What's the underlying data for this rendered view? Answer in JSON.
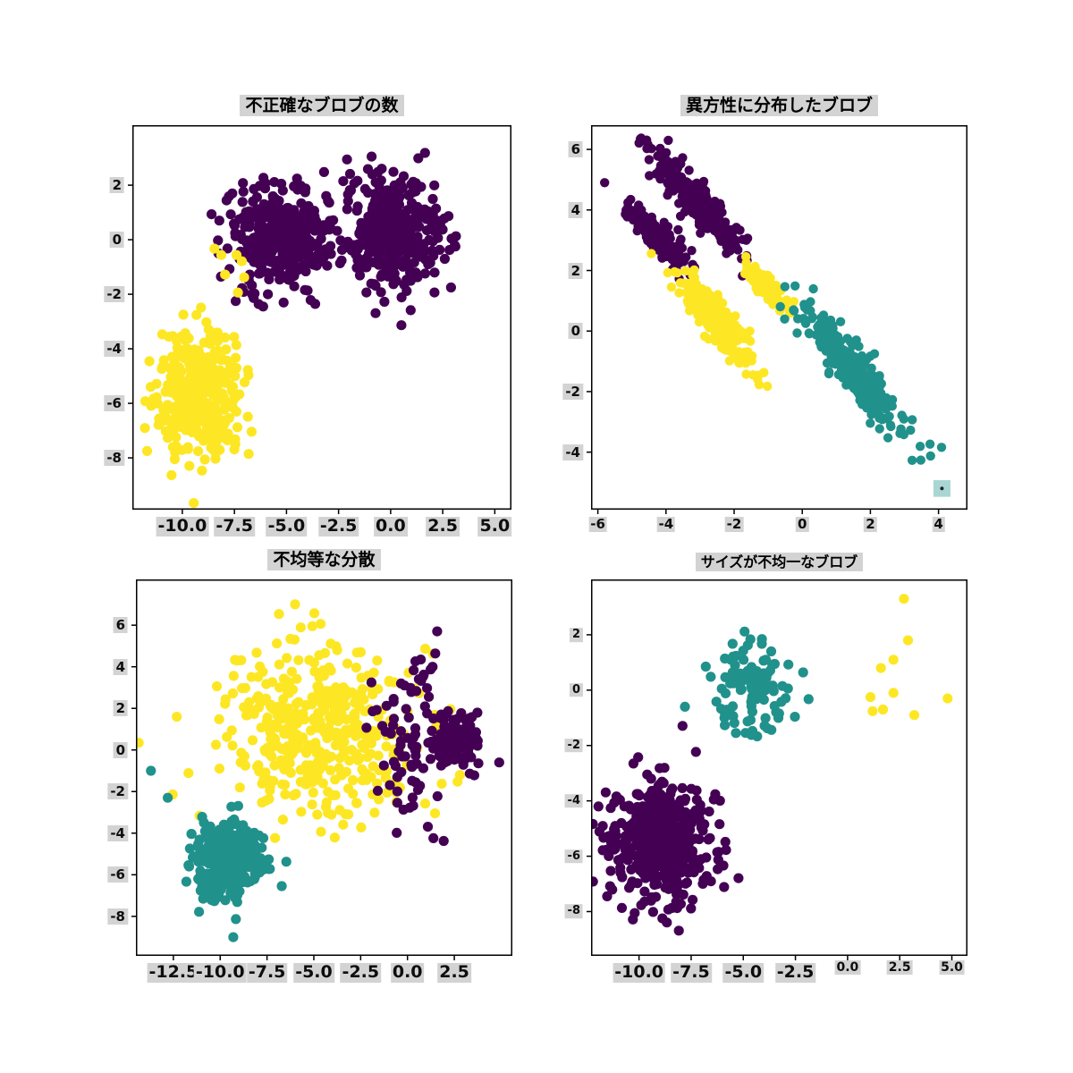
{
  "figure": {
    "background": "#ffffff"
  },
  "colors": {
    "purple": "#440154",
    "yellow": "#fde725",
    "teal": "#21918c",
    "tick_label_bg": "#d3d3d3",
    "spine": "#000000",
    "text": "#0d0d0d",
    "artifact_fill": "#a9d6d3",
    "artifact_dot": "#222222"
  },
  "chart_data": [
    {
      "id": "incorrect-number-of-blobs",
      "type": "scatter",
      "title": "不正確なブロブの数",
      "legend": "none",
      "grid": false,
      "xlim": [
        -12.4,
        5.8
      ],
      "ylim": [
        -9.9,
        4.2
      ],
      "xticks": [
        {
          "v": -10,
          "label": "-10.0"
        },
        {
          "v": -7.5,
          "label": "-7.5"
        },
        {
          "v": -5,
          "label": "-5.0"
        },
        {
          "v": -2.5,
          "label": "-2.5"
        },
        {
          "v": 0,
          "label": "0.0"
        },
        {
          "v": 2.5,
          "label": "2.5"
        },
        {
          "v": 5,
          "label": "5.0"
        }
      ],
      "yticks": [
        {
          "v": 2,
          "label": "2"
        },
        {
          "v": 0,
          "label": "0"
        },
        {
          "v": -2,
          "label": "-2"
        },
        {
          "v": -4,
          "label": "-4"
        },
        {
          "v": -6,
          "label": "-6"
        },
        {
          "v": -8,
          "label": "-8"
        }
      ],
      "marker_radius": 5.6,
      "clusters": [
        {
          "color": "purple",
          "n": 380,
          "center": [
            -5.4,
            0.1
          ],
          "std": [
            1.15,
            1.0
          ],
          "seed": 11
        },
        {
          "color": "purple",
          "n": 380,
          "center": [
            0.05,
            0.2
          ],
          "std": [
            1.15,
            1.05
          ],
          "seed": 12
        },
        {
          "color": "yellow",
          "n": 380,
          "center": [
            -9.2,
            -5.6
          ],
          "std": [
            1.0,
            1.05
          ],
          "seed": 13
        },
        {
          "color": "yellow",
          "points": [
            [
              -8.46,
              -0.33
            ],
            [
              -8.13,
              -0.56
            ],
            [
              -7.4,
              -0.56
            ],
            [
              -7.14,
              -0.79
            ],
            [
              -7.95,
              -1.28
            ],
            [
              -7.03,
              -1.38
            ],
            [
              -7.33,
              -1.94
            ]
          ]
        },
        {
          "color": "purple",
          "points": [
            [
              2.9,
              -1.75
            ]
          ]
        }
      ]
    },
    {
      "id": "anisotropically-distributed-blobs",
      "type": "scatter",
      "title": "異方性に分布したブロブ",
      "legend": "none",
      "grid": false,
      "xlim": [
        -6.2,
        4.85
      ],
      "ylim": [
        -5.9,
        6.8
      ],
      "xticks": [
        {
          "v": -6,
          "label": "-6"
        },
        {
          "v": -4,
          "label": "-4"
        },
        {
          "v": -2,
          "label": "-2"
        },
        {
          "v": 0,
          "label": "0"
        },
        {
          "v": 2,
          "label": "2"
        },
        {
          "v": 4,
          "label": "4"
        }
      ],
      "yticks": [
        {
          "v": 6,
          "label": "6"
        },
        {
          "v": 4,
          "label": "4"
        },
        {
          "v": 2,
          "label": "2"
        },
        {
          "v": 0,
          "label": "0"
        },
        {
          "v": -2,
          "label": "-2"
        },
        {
          "v": -4,
          "label": "-4"
        }
      ],
      "marker_radius": 5.2,
      "clusters": [
        {
          "color": "purple",
          "n": 240,
          "center": [
            -3.15,
            4.35
          ],
          "dir": [
            0.595,
            -0.804
          ],
          "std": [
            1.05,
            0.22
          ],
          "seed": 21
        },
        {
          "color": "purple",
          "n": 160,
          "center": [
            -4.15,
            3.05
          ],
          "dir": [
            0.63,
            -0.78
          ],
          "std": [
            0.62,
            0.2
          ],
          "seed": 22
        },
        {
          "color": "yellow",
          "n": 260,
          "center": [
            -2.5,
            0.35
          ],
          "dir": [
            0.56,
            -0.83
          ],
          "std": [
            1.0,
            0.22
          ],
          "seed": 23
        },
        {
          "color": "yellow",
          "n": 90,
          "center": [
            -1.05,
            1.45
          ],
          "dir": [
            0.595,
            -0.804
          ],
          "std": [
            0.42,
            0.16
          ],
          "seed": 24
        },
        {
          "color": "teal",
          "n": 320,
          "center": [
            1.45,
            -1.25
          ],
          "dir": [
            0.565,
            -0.825
          ],
          "std": [
            1.25,
            0.24
          ],
          "seed": 25
        },
        {
          "color": "purple",
          "points": [
            [
              -5.8,
              4.9
            ]
          ]
        }
      ],
      "artifact": {
        "x": 4.1,
        "y": -5.2,
        "w": 0.5,
        "h": 0.55
      }
    },
    {
      "id": "unequal-variance",
      "type": "scatter",
      "title": "不均等な分散",
      "legend": "none",
      "grid": false,
      "xlim": [
        -14.5,
        5.6
      ],
      "ylim": [
        -9.9,
        8.2
      ],
      "xticks": [
        {
          "v": -12.5,
          "label": "-12.5"
        },
        {
          "v": -10,
          "label": "-10.0"
        },
        {
          "v": -7.5,
          "label": "-7.5"
        },
        {
          "v": -5,
          "label": "-5.0"
        },
        {
          "v": -2.5,
          "label": "-2.5"
        },
        {
          "v": 0,
          "label": "0.0"
        },
        {
          "v": 2.5,
          "label": "2.5"
        }
      ],
      "yticks": [
        {
          "v": 6,
          "label": "6"
        },
        {
          "v": 4,
          "label": "4"
        },
        {
          "v": 2,
          "label": "2"
        },
        {
          "v": 0,
          "label": "0"
        },
        {
          "v": -2,
          "label": "-2"
        },
        {
          "v": -4,
          "label": "-4"
        },
        {
          "v": -6,
          "label": "-6"
        },
        {
          "v": -8,
          "label": "-8"
        }
      ],
      "marker_radius": 5.6,
      "clusters": [
        {
          "color": "yellow",
          "n": 430,
          "center": [
            -4.8,
            0.9
          ],
          "std": [
            2.5,
            2.1
          ],
          "seed": 31
        },
        {
          "color": "purple",
          "n": 130,
          "center": [
            2.6,
            0.45
          ],
          "std": [
            0.6,
            0.68
          ],
          "seed": 32
        },
        {
          "color": "purple",
          "n": 80,
          "center": [
            0.3,
            1.0
          ],
          "std": [
            1.0,
            2.3
          ],
          "seed": 33
        },
        {
          "color": "teal",
          "n": 280,
          "center": [
            -9.6,
            -5.4
          ],
          "std": [
            0.95,
            0.95
          ],
          "seed": 34
        },
        {
          "color": "teal",
          "points": [
            [
              -13.7,
              -1.0
            ],
            [
              -12.8,
              -2.3
            ],
            [
              -9.3,
              -9.0
            ]
          ]
        },
        {
          "color": "purple",
          "points": [
            [
              4.9,
              -0.6
            ]
          ]
        }
      ]
    },
    {
      "id": "unevenly-sized-blobs",
      "type": "scatter",
      "title": "サイズが不均一なブロブ",
      "legend": "none",
      "grid": false,
      "xlim": [
        -12.3,
        5.75
      ],
      "ylim": [
        -9.6,
        4.0
      ],
      "xticks": [
        {
          "v": -10,
          "label": "-10.0"
        },
        {
          "v": -7.5,
          "label": "-7.5"
        },
        {
          "v": -5,
          "label": "-5.0"
        },
        {
          "v": -2.5,
          "label": "-2.5"
        },
        {
          "v": 0,
          "label": "0.0"
        },
        {
          "v": 2.5,
          "label": "2.5"
        },
        {
          "v": 5,
          "label": "5.0"
        }
      ],
      "yticks": [
        {
          "v": 2,
          "label": "2"
        },
        {
          "v": 0,
          "label": "0"
        },
        {
          "v": -2,
          "label": "-2"
        },
        {
          "v": -4,
          "label": "-4"
        },
        {
          "v": -6,
          "label": "-6"
        },
        {
          "v": -8,
          "label": "-8"
        }
      ],
      "marker_radius": 5.6,
      "clusters": [
        {
          "color": "purple",
          "n": 480,
          "center": [
            -9.0,
            -5.5
          ],
          "std": [
            1.15,
            1.15
          ],
          "seed": 41
        },
        {
          "color": "teal",
          "n": 105,
          "center": [
            -4.6,
            0.15
          ],
          "std": [
            0.8,
            0.85
          ],
          "seed": 42
        },
        {
          "color": "teal",
          "points": [
            [
              -7.8,
              -0.6
            ],
            [
              -6.8,
              0.85
            ]
          ]
        },
        {
          "color": "yellow",
          "points": [
            [
              2.7,
              3.3
            ],
            [
              2.9,
              1.8
            ],
            [
              2.2,
              1.1
            ],
            [
              1.6,
              0.8
            ],
            [
              2.2,
              -0.1
            ],
            [
              1.1,
              -0.25
            ],
            [
              1.2,
              -0.76
            ],
            [
              1.7,
              -0.7
            ],
            [
              3.2,
              -0.9
            ],
            [
              4.8,
              -0.3
            ]
          ]
        }
      ]
    }
  ]
}
